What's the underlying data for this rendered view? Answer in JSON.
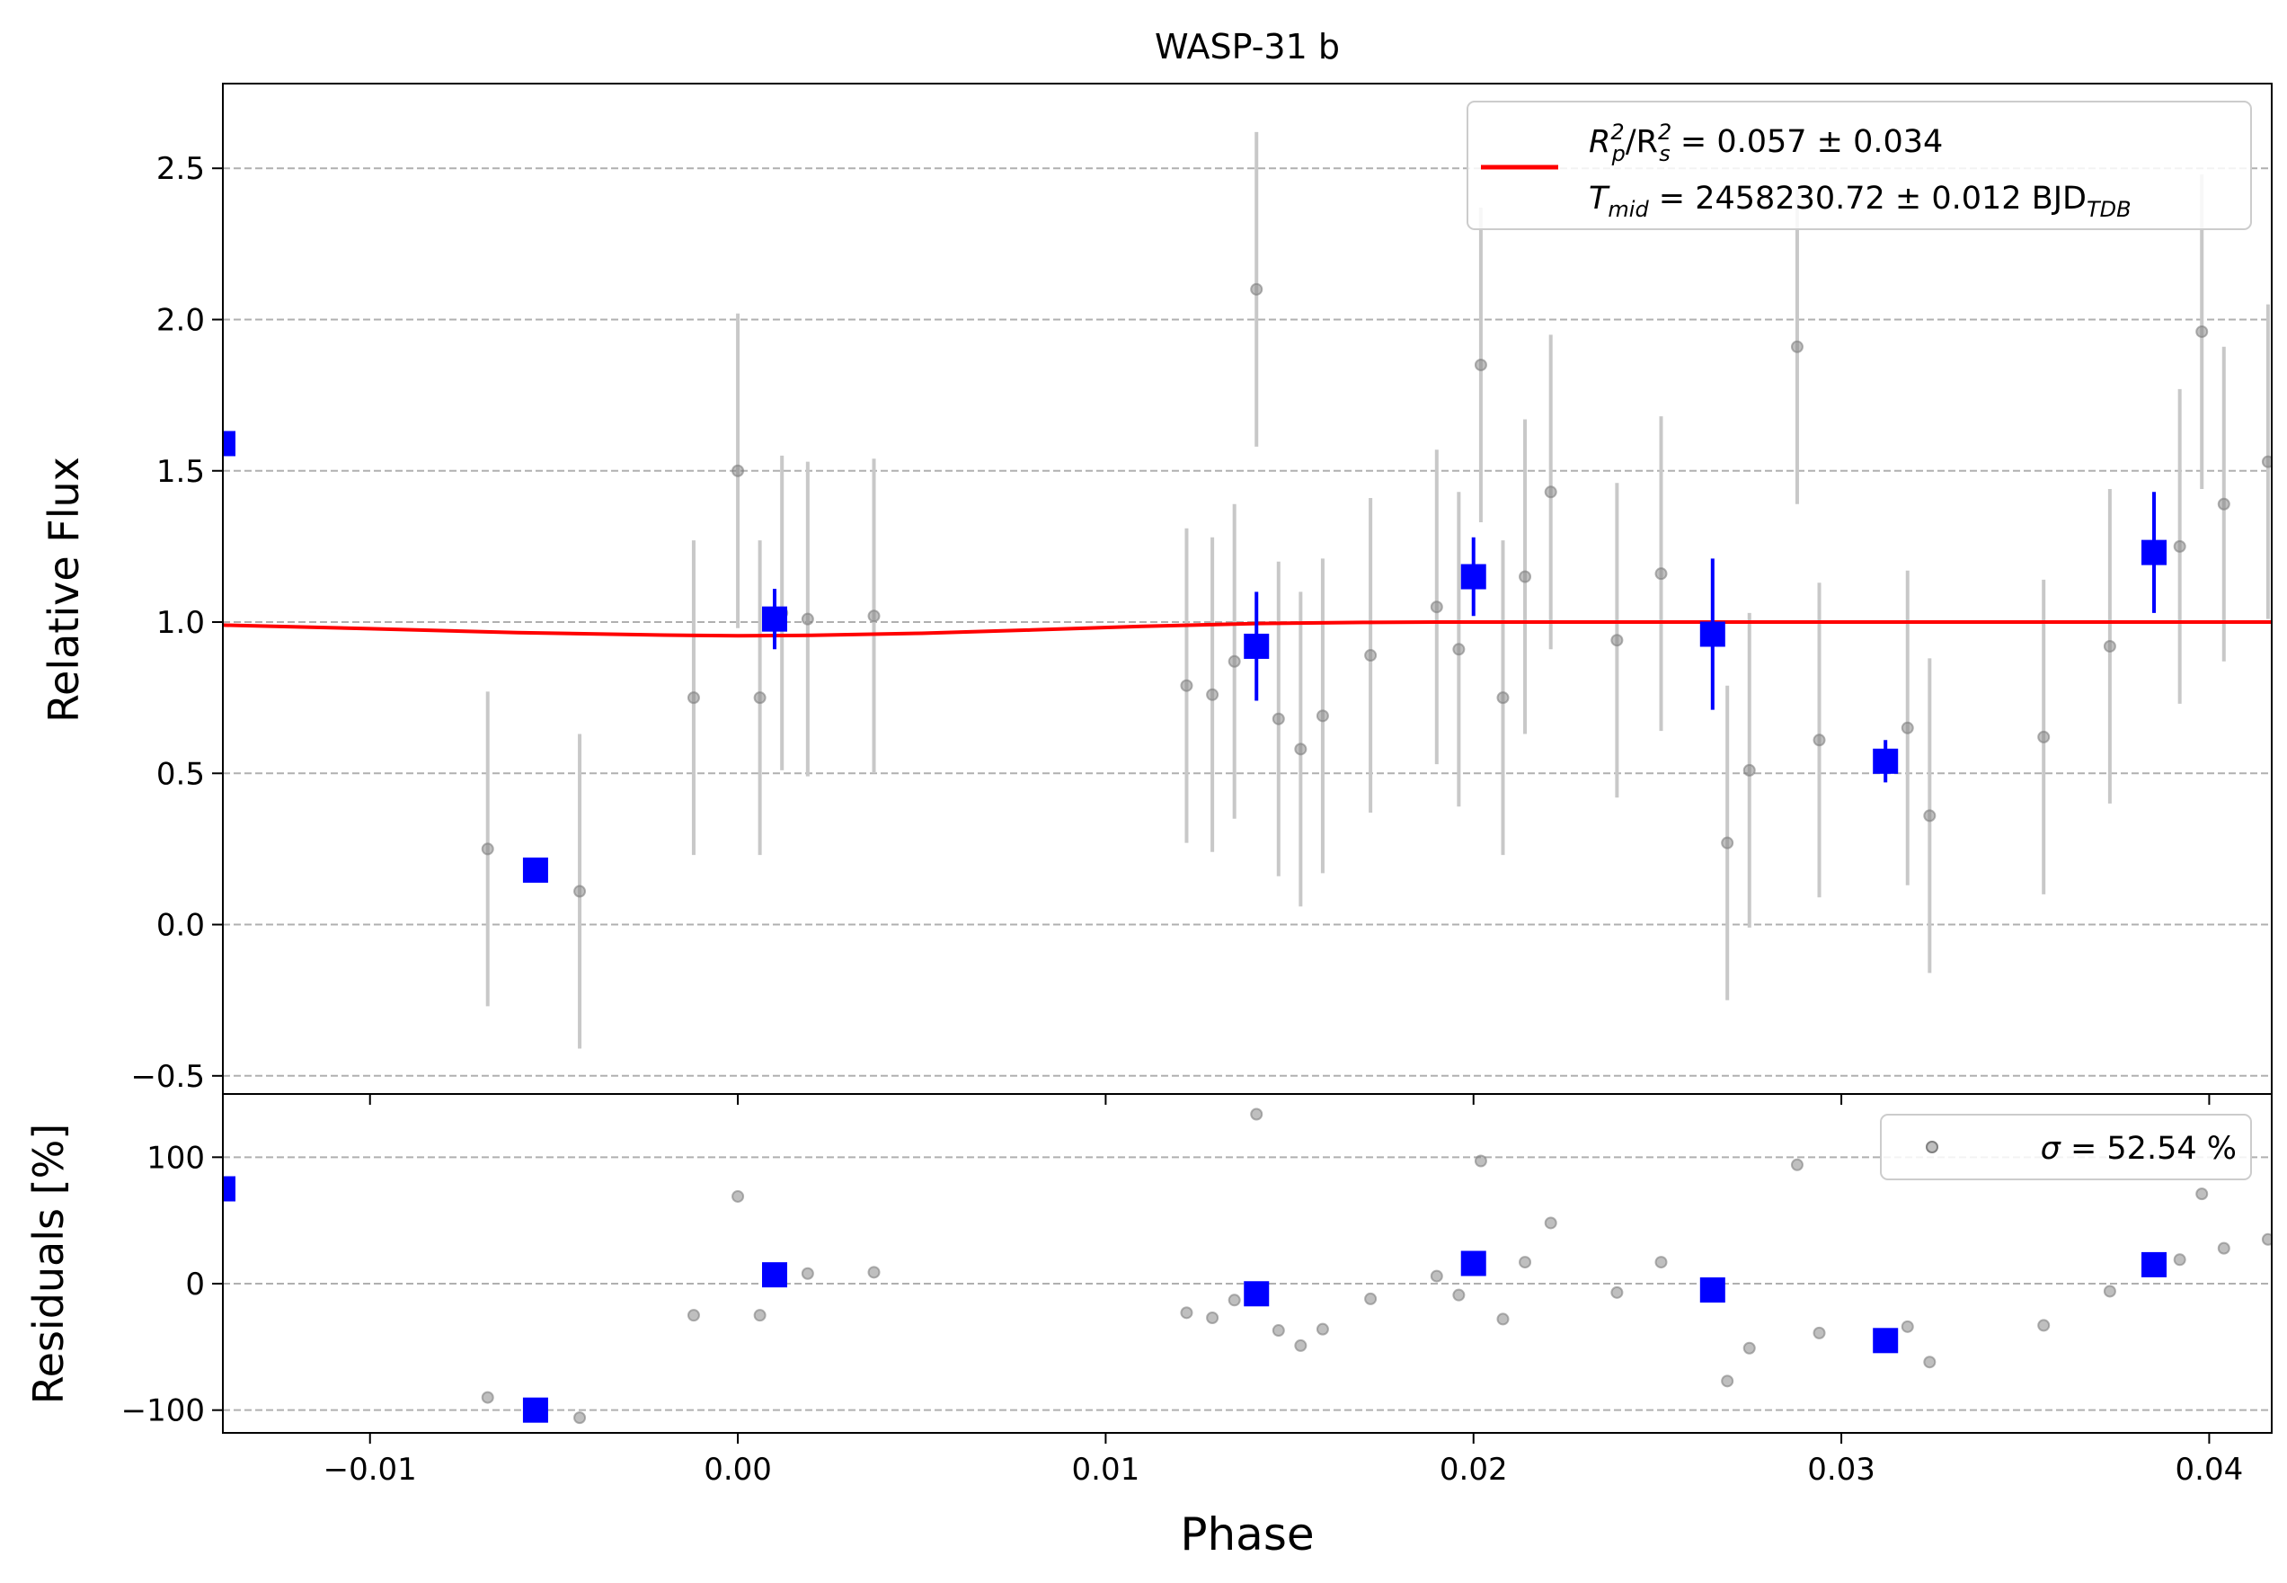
{
  "chart_data": [
    {
      "type": "scatter",
      "panel": "main",
      "title": "WASP-31 b",
      "xlabel": "",
      "ylabel": "Relative Flux",
      "xlim": [
        -0.014,
        0.0417
      ],
      "ylim": [
        -0.56,
        2.78
      ],
      "xticks": [
        -0.01,
        0.0,
        0.01,
        0.02,
        0.03,
        0.04
      ],
      "xtick_labels": [
        "−0.01",
        "0.00",
        "0.01",
        "0.02",
        "0.03",
        "0.04"
      ],
      "yticks": [
        -0.5,
        0.0,
        0.5,
        1.0,
        1.5,
        2.0,
        2.5
      ],
      "ytick_labels": [
        "−0.5",
        "0.0",
        "0.5",
        "1.0",
        "1.5",
        "2.0",
        "2.5"
      ],
      "grid": "horizontal-dashed",
      "legend_placement": "top-right",
      "legend": {
        "line1": {
          "prefix": "R",
          "sub_a": "p",
          "mid": "/R",
          "sub_b": "s",
          "suffix": " = 0.057 ± 0.034"
        },
        "line2": {
          "prefix": "T",
          "sub": "mid",
          "text": " = 2458230.72 ± 0.012 BJD",
          "sub2": "TDB"
        }
      },
      "colors": {
        "data": "#808080",
        "errorbar": "#c8c8c8",
        "binned": "#0000ff",
        "model": "#ff0000",
        "grid": "#b0b0b0"
      },
      "raw_points": [
        {
          "x": -0.0068,
          "y": 0.25,
          "err": 0.52
        },
        {
          "x": -0.0043,
          "y": 0.11,
          "err": 0.52
        },
        {
          "x": -0.0012,
          "y": 0.75,
          "err": 0.52
        },
        {
          "x": 0.0,
          "y": 1.5,
          "err": 0.52
        },
        {
          "x": 0.0006,
          "y": 0.75,
          "err": 0.52
        },
        {
          "x": 0.0012,
          "y": 1.03,
          "err": 0.52
        },
        {
          "x": 0.0019,
          "y": 1.01,
          "err": 0.52
        },
        {
          "x": 0.0037,
          "y": 1.02,
          "err": 0.52
        },
        {
          "x": 0.0122,
          "y": 0.79,
          "err": 0.52
        },
        {
          "x": 0.0129,
          "y": 0.76,
          "err": 0.52
        },
        {
          "x": 0.0135,
          "y": 0.87,
          "err": 0.52
        },
        {
          "x": 0.0141,
          "y": 2.1,
          "err": 0.52
        },
        {
          "x": 0.0147,
          "y": 0.68,
          "err": 0.52
        },
        {
          "x": 0.0153,
          "y": 0.58,
          "err": 0.52
        },
        {
          "x": 0.0159,
          "y": 0.69,
          "err": 0.52
        },
        {
          "x": 0.0172,
          "y": 0.89,
          "err": 0.52
        },
        {
          "x": 0.019,
          "y": 1.05,
          "err": 0.52
        },
        {
          "x": 0.0196,
          "y": 0.91,
          "err": 0.52
        },
        {
          "x": 0.0202,
          "y": 1.85,
          "err": 0.52
        },
        {
          "x": 0.0208,
          "y": 0.75,
          "err": 0.52
        },
        {
          "x": 0.0214,
          "y": 1.15,
          "err": 0.52
        },
        {
          "x": 0.0221,
          "y": 1.43,
          "err": 0.52
        },
        {
          "x": 0.0239,
          "y": 0.94,
          "err": 0.52
        },
        {
          "x": 0.0251,
          "y": 1.16,
          "err": 0.52
        },
        {
          "x": 0.0269,
          "y": 0.27,
          "err": 0.52
        },
        {
          "x": 0.0275,
          "y": 0.51,
          "err": 0.52
        },
        {
          "x": 0.0288,
          "y": 1.91,
          "err": 0.52
        },
        {
          "x": 0.0294,
          "y": 0.61,
          "err": 0.52
        },
        {
          "x": 0.0318,
          "y": 0.65,
          "err": 0.52
        },
        {
          "x": 0.0324,
          "y": 0.36,
          "err": 0.52
        },
        {
          "x": 0.0355,
          "y": 0.62,
          "err": 0.52
        },
        {
          "x": 0.0373,
          "y": 0.92,
          "err": 0.52
        },
        {
          "x": 0.0392,
          "y": 1.25,
          "err": 0.52
        },
        {
          "x": 0.0398,
          "y": 1.96,
          "err": 0.52
        },
        {
          "x": 0.0404,
          "y": 1.39,
          "err": 0.52
        },
        {
          "x": 0.0416,
          "y": 1.53,
          "err": 0.52
        }
      ],
      "binned_points": [
        {
          "x": -0.014,
          "y": 1.59,
          "err": 0.0
        },
        {
          "x": -0.0055,
          "y": 0.18,
          "err": 0.03
        },
        {
          "x": 0.001,
          "y": 1.01,
          "err": 0.1
        },
        {
          "x": 0.0141,
          "y": 0.92,
          "err": 0.18
        },
        {
          "x": 0.02,
          "y": 1.15,
          "err": 0.13
        },
        {
          "x": 0.0265,
          "y": 0.96,
          "err": 0.25
        },
        {
          "x": 0.0312,
          "y": 0.54,
          "err": 0.07
        },
        {
          "x": 0.0385,
          "y": 1.23,
          "err": 0.2
        }
      ],
      "model_curve": {
        "x": [
          -0.014,
          -0.01,
          -0.006,
          -0.002,
          0.0,
          0.002,
          0.005,
          0.008,
          0.011,
          0.014,
          0.017,
          0.019,
          0.0417
        ],
        "y": [
          0.99,
          0.978,
          0.965,
          0.957,
          0.955,
          0.956,
          0.963,
          0.974,
          0.986,
          0.995,
          0.999,
          1.0,
          1.0
        ]
      }
    },
    {
      "type": "scatter",
      "panel": "residuals",
      "xlabel": "Phase",
      "ylabel": "Residuals [%]",
      "xlim": [
        -0.014,
        0.0417
      ],
      "ylim": [
        -118,
        150
      ],
      "yticks": [
        -100,
        0,
        100
      ],
      "ytick_labels": [
        "−100",
        "0",
        "100"
      ],
      "grid": "horizontal-dashed",
      "legend_placement": "top-right",
      "legend": {
        "sigma": "σ",
        "text": " = 52.54 %"
      },
      "raw_points": [
        {
          "x": -0.0068,
          "y": -90
        },
        {
          "x": -0.0043,
          "y": -106
        },
        {
          "x": -0.0012,
          "y": -25
        },
        {
          "x": 0.0,
          "y": 69
        },
        {
          "x": 0.0006,
          "y": -25
        },
        {
          "x": 0.0019,
          "y": 8
        },
        {
          "x": 0.0037,
          "y": 9
        },
        {
          "x": 0.0122,
          "y": -23
        },
        {
          "x": 0.0129,
          "y": -27
        },
        {
          "x": 0.0135,
          "y": -13
        },
        {
          "x": 0.0141,
          "y": 134
        },
        {
          "x": 0.0147,
          "y": -37
        },
        {
          "x": 0.0153,
          "y": -49
        },
        {
          "x": 0.0159,
          "y": -36
        },
        {
          "x": 0.0172,
          "y": -12
        },
        {
          "x": 0.019,
          "y": 6
        },
        {
          "x": 0.0196,
          "y": -9
        },
        {
          "x": 0.0202,
          "y": 97
        },
        {
          "x": 0.0208,
          "y": -28
        },
        {
          "x": 0.0214,
          "y": 17
        },
        {
          "x": 0.0221,
          "y": 48
        },
        {
          "x": 0.0239,
          "y": -7
        },
        {
          "x": 0.0251,
          "y": 17
        },
        {
          "x": 0.0269,
          "y": -77
        },
        {
          "x": 0.0275,
          "y": -51
        },
        {
          "x": 0.0288,
          "y": 94
        },
        {
          "x": 0.0294,
          "y": -39
        },
        {
          "x": 0.0318,
          "y": -34
        },
        {
          "x": 0.0324,
          "y": -62
        },
        {
          "x": 0.0355,
          "y": -33
        },
        {
          "x": 0.0373,
          "y": -6
        },
        {
          "x": 0.0392,
          "y": 19
        },
        {
          "x": 0.0398,
          "y": 71
        },
        {
          "x": 0.0404,
          "y": 28
        },
        {
          "x": 0.0416,
          "y": 35
        }
      ],
      "binned_points": [
        {
          "x": -0.014,
          "y": 75
        },
        {
          "x": -0.0055,
          "y": -100
        },
        {
          "x": 0.001,
          "y": 7
        },
        {
          "x": 0.0141,
          "y": -8
        },
        {
          "x": 0.02,
          "y": 16
        },
        {
          "x": 0.0265,
          "y": -5
        },
        {
          "x": 0.0312,
          "y": -45
        },
        {
          "x": 0.0385,
          "y": 15
        }
      ]
    }
  ]
}
